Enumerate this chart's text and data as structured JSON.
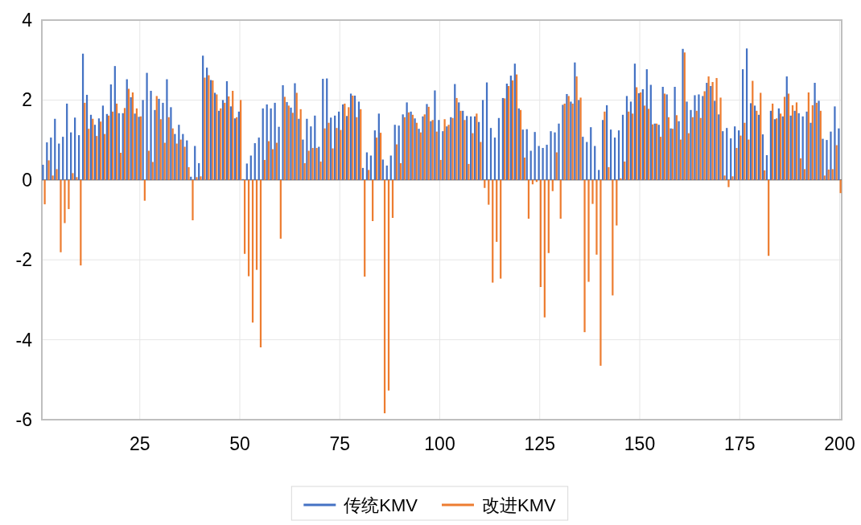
{
  "chart_data": {
    "type": "bar",
    "xlim": [
      0.5,
      200.5
    ],
    "xticks": [
      25,
      50,
      75,
      100,
      125,
      150,
      175,
      200
    ],
    "ylim": [
      -6,
      4
    ],
    "yticks": [
      -6,
      -4,
      -2,
      0,
      2,
      4
    ],
    "grid": true,
    "legend": "bottom",
    "x": [
      1,
      2,
      3,
      4,
      5,
      6,
      7,
      8,
      9,
      10,
      11,
      12,
      13,
      14,
      15,
      16,
      17,
      18,
      19,
      20,
      21,
      22,
      23,
      24,
      25,
      26,
      27,
      28,
      29,
      30,
      31,
      32,
      33,
      34,
      35,
      36,
      37,
      38,
      39,
      40,
      41,
      42,
      43,
      44,
      45,
      46,
      47,
      48,
      49,
      50,
      51,
      52,
      53,
      54,
      55,
      56,
      57,
      58,
      59,
      60,
      61,
      62,
      63,
      64,
      65,
      66,
      67,
      68,
      69,
      70,
      71,
      72,
      73,
      74,
      75,
      76,
      77,
      78,
      79,
      80,
      81,
      82,
      83,
      84,
      85,
      86,
      87,
      88,
      89,
      90,
      91,
      92,
      93,
      94,
      95,
      96,
      97,
      98,
      99,
      100,
      101,
      102,
      103,
      104,
      105,
      106,
      107,
      108,
      109,
      110,
      111,
      112,
      113,
      114,
      115,
      116,
      117,
      118,
      119,
      120,
      121,
      122,
      123,
      124,
      125,
      126,
      127,
      128,
      129,
      130,
      131,
      132,
      133,
      134,
      135,
      136,
      137,
      138,
      139,
      140,
      141,
      142,
      143,
      144,
      145,
      146,
      147,
      148,
      149,
      150,
      151,
      152,
      153,
      154,
      155,
      156,
      157,
      158,
      159,
      160,
      161,
      162,
      163,
      164,
      165,
      166,
      167,
      168,
      169,
      170,
      171,
      172,
      173,
      174,
      175,
      176,
      177,
      178,
      179,
      180,
      181,
      182,
      183,
      184,
      185,
      186,
      187,
      188,
      189,
      190,
      191,
      192,
      193,
      194,
      195,
      196,
      197,
      198,
      199,
      200
    ],
    "series": [
      {
        "name": "传统KMV",
        "color": "#4472c4",
        "values": [
          0.38,
          0.94,
          1.06,
          1.53,
          0.91,
          1.08,
          1.91,
          1.19,
          1.56,
          1.12,
          3.16,
          2.13,
          1.63,
          1.38,
          1.54,
          1.86,
          1.65,
          2.39,
          2.85,
          1.67,
          1.67,
          2.52,
          2.07,
          1.66,
          1.58,
          2.0,
          2.68,
          2.23,
          1.75,
          2.03,
          1.93,
          2.52,
          1.82,
          1.15,
          1.38,
          1.15,
          0.99,
          0.08,
          0.85,
          0.42,
          3.11,
          2.81,
          2.5,
          2.18,
          1.73,
          2.0,
          2.47,
          1.84,
          1.54,
          1.71,
          0.02,
          0.41,
          0.61,
          0.92,
          1.06,
          1.79,
          1.89,
          1.79,
          1.93,
          1.33,
          2.37,
          1.95,
          1.81,
          2.42,
          1.53,
          1.01,
          1.53,
          1.34,
          1.61,
          0.83,
          2.53,
          2.54,
          1.56,
          1.61,
          1.71,
          1.89,
          1.6,
          2.16,
          2.11,
          1.96,
          0.3,
          0.69,
          0.61,
          1.24,
          1.66,
          0.51,
          0.36,
          0.61,
          1.38,
          1.36,
          1.64,
          1.94,
          1.71,
          1.54,
          1.28,
          1.59,
          1.9,
          1.47,
          2.24,
          1.5,
          1.22,
          1.34,
          1.57,
          2.4,
          1.94,
          1.73,
          1.6,
          1.59,
          1.59,
          1.45,
          2.0,
          2.44,
          1.3,
          1.06,
          1.55,
          2.05,
          2.41,
          2.61,
          2.91,
          1.79,
          1.26,
          1.27,
          0.73,
          1.2,
          0.85,
          0.8,
          0.88,
          1.22,
          1.19,
          1.41,
          1.88,
          2.15,
          1.96,
          2.94,
          2.0,
          1.08,
          0.95,
          1.32,
          0.85,
          0.25,
          1.5,
          1.87,
          1.26,
          1.06,
          1.24,
          1.63,
          2.1,
          1.96,
          2.91,
          2.17,
          2.27,
          2.77,
          2.38,
          1.41,
          1.38,
          2.33,
          2.14,
          1.29,
          2.33,
          1.47,
          3.28,
          1.96,
          1.75,
          2.12,
          2.14,
          2.1,
          2.43,
          2.35,
          1.98,
          1.64,
          1.22,
          1.3,
          1.04,
          1.34,
          1.24,
          2.77,
          3.29,
          1.92,
          1.86,
          1.63,
          1.14,
          0.62,
          1.73,
          1.52,
          1.79,
          1.59,
          2.59,
          1.61,
          1.73,
          1.67,
          1.59,
          1.71,
          1.43,
          2.43,
          1.98,
          1.03,
          1.0,
          1.21,
          1.84,
          1.29
        ]
      },
      {
        "name": "改进KMV",
        "color": "#ed7d31",
        "values": [
          -0.61,
          0.49,
          0.11,
          0.27,
          -1.81,
          -1.08,
          -0.73,
          0.17,
          0.07,
          -2.14,
          1.93,
          1.28,
          1.53,
          1.1,
          1.46,
          1.15,
          1.61,
          1.71,
          1.91,
          0.68,
          1.8,
          2.28,
          2.19,
          1.79,
          1.59,
          -0.52,
          0.73,
          0.45,
          2.1,
          1.52,
          0.93,
          1.57,
          1.29,
          0.91,
          1.01,
          0.83,
          0.32,
          -1.01,
          0.07,
          0.09,
          2.56,
          2.62,
          2.49,
          2.14,
          1.79,
          1.93,
          2.09,
          2.23,
          1.57,
          2.0,
          -1.85,
          -2.41,
          -3.57,
          -2.25,
          -4.19,
          0.5,
          0.97,
          0.77,
          0.93,
          -1.47,
          2.08,
          1.86,
          1.68,
          2.18,
          1.77,
          0.42,
          0.73,
          0.8,
          0.8,
          0.46,
          1.29,
          1.43,
          0.79,
          1.3,
          1.25,
          1.91,
          1.82,
          2.11,
          1.57,
          1.77,
          -2.42,
          0.25,
          -1.03,
          1.06,
          1.18,
          -5.84,
          -5.27,
          -0.95,
          0.89,
          0.42,
          1.57,
          1.69,
          1.63,
          1.43,
          1.19,
          1.64,
          1.83,
          1.5,
          1.21,
          0.5,
          1.52,
          1.38,
          1.55,
          2.05,
          1.73,
          1.5,
          0.4,
          1.17,
          1.66,
          0.95,
          -0.2,
          -0.62,
          -2.57,
          -1.55,
          -2.47,
          2.04,
          2.35,
          2.49,
          2.64,
          1.75,
          0.56,
          -0.97,
          -0.11,
          -0.05,
          -2.68,
          -3.44,
          -1.83,
          -0.28,
          0.69,
          -0.97,
          1.91,
          2.1,
          1.91,
          2.59,
          2.06,
          -3.81,
          -2.55,
          -0.6,
          -1.87,
          -4.65,
          1.71,
          0.32,
          -2.89,
          -1.14,
          0.04,
          0.46,
          1.71,
          1.66,
          2.32,
          2.19,
          1.86,
          1.78,
          1.39,
          1.41,
          1.08,
          2.16,
          1.57,
          1.28,
          1.62,
          1.01,
          3.19,
          1.17,
          1.57,
          1.73,
          1.55,
          2.22,
          2.59,
          2.45,
          2.55,
          2.06,
          0.11,
          -0.18,
          0.09,
          0.8,
          1.11,
          1.43,
          1.01,
          2.48,
          1.73,
          2.18,
          0.24,
          -1.9,
          1.91,
          1.54,
          1.66,
          2.08,
          2.16,
          1.87,
          1.94,
          0.54,
          0.27,
          2.19,
          1.87,
          1.93,
          1.73,
          0.11,
          0.26,
          0.27,
          0.87,
          -0.33
        ]
      }
    ]
  }
}
